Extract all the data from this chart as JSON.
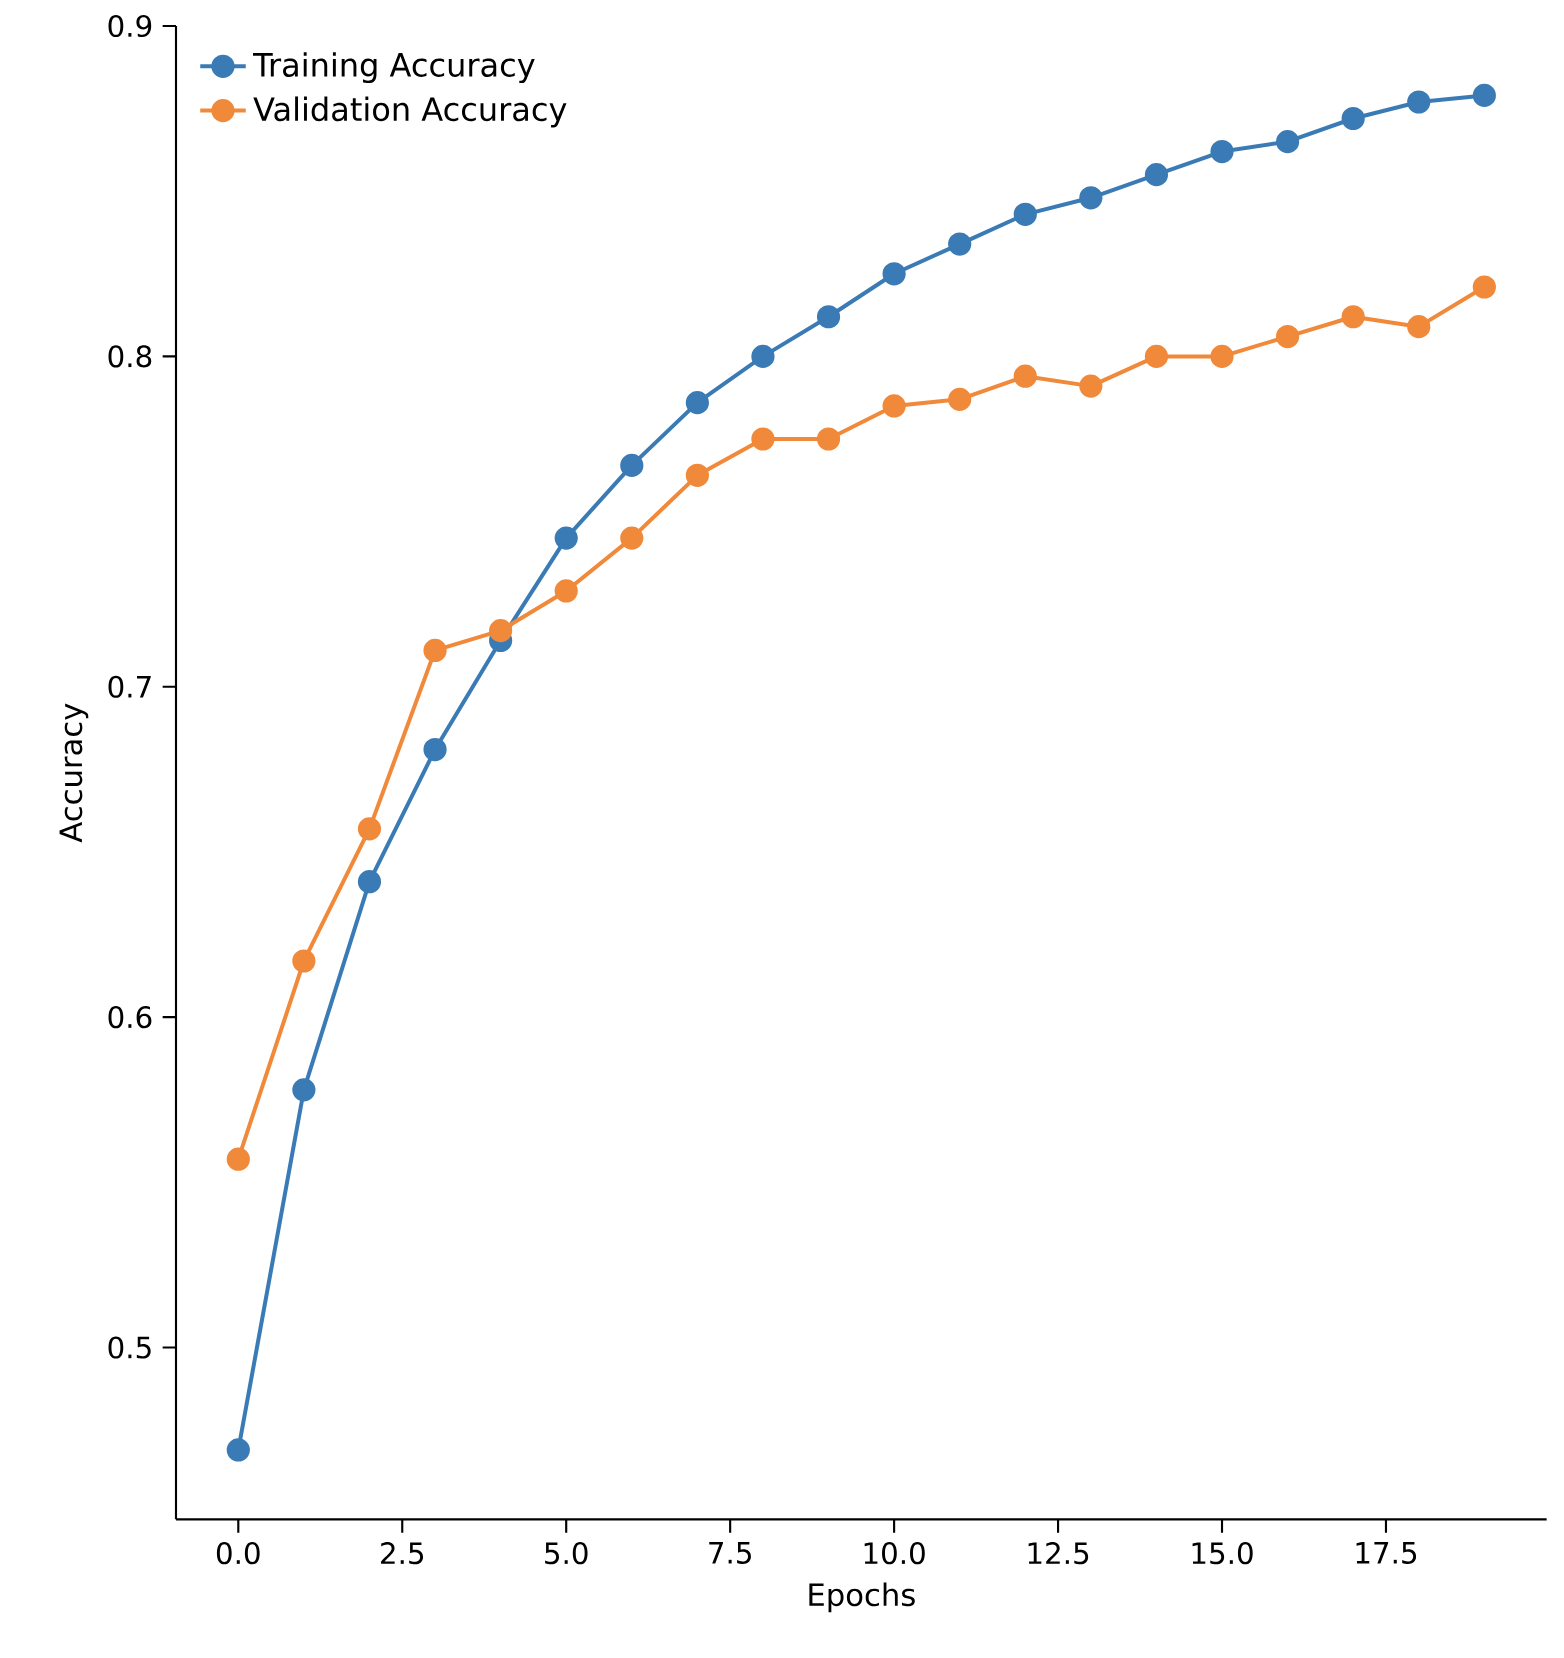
{
  "chart_data": {
    "type": "line",
    "xlabel": "Epochs",
    "ylabel": "Accuracy",
    "x": [
      0,
      1,
      2,
      3,
      4,
      5,
      6,
      7,
      8,
      9,
      10,
      11,
      12,
      13,
      14,
      15,
      16,
      17,
      18,
      19
    ],
    "series": [
      {
        "name": "Training Accuracy",
        "color": "#3a7bb6",
        "values": [
          0.469,
          0.578,
          0.641,
          0.681,
          0.714,
          0.745,
          0.767,
          0.786,
          0.8,
          0.812,
          0.825,
          0.834,
          0.843,
          0.848,
          0.855,
          0.862,
          0.865,
          0.872,
          0.877,
          0.879
        ]
      },
      {
        "name": "Validation Accuracy",
        "color": "#f0893a",
        "values": [
          0.557,
          0.617,
          0.657,
          0.711,
          0.717,
          0.729,
          0.745,
          0.764,
          0.775,
          0.775,
          0.785,
          0.787,
          0.794,
          0.791,
          0.8,
          0.8,
          0.806,
          0.812,
          0.809,
          0.821
        ]
      }
    ],
    "xlim": [
      -0.95,
      19.95
    ],
    "ylim": [
      0.448,
      0.9
    ],
    "xticks": [
      {
        "value": 0,
        "label": "0.0"
      },
      {
        "value": 2.5,
        "label": "2.5"
      },
      {
        "value": 5,
        "label": "5.0"
      },
      {
        "value": 7.5,
        "label": "7.5"
      },
      {
        "value": 10,
        "label": "10.0"
      },
      {
        "value": 12.5,
        "label": "12.5"
      },
      {
        "value": 15,
        "label": "15.0"
      },
      {
        "value": 17.5,
        "label": "17.5"
      }
    ],
    "yticks": [
      0.5,
      0.6,
      0.7,
      0.8,
      0.9
    ],
    "legend": "top left",
    "marker": "circle",
    "line_style": "solid",
    "grid": false
  }
}
